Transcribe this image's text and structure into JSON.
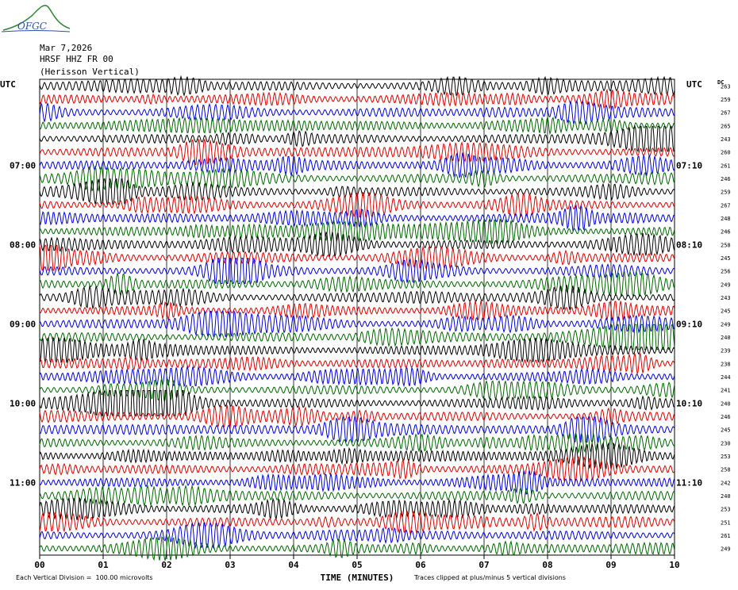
{
  "header": {
    "logo_text": "OFGC",
    "date": "Mar 7,2026",
    "station": "HRSF HHZ FR 00",
    "component": "(Herisson Vertical)"
  },
  "chart_data": {
    "type": "line",
    "title": "",
    "xlabel": "TIME (MINUTES)",
    "ylabel": "",
    "left_utc_label": "UTC",
    "right_utc_label": "UTC",
    "dc_label": "DC",
    "xlim": [
      0,
      10
    ],
    "x_ticks": [
      "00",
      "01",
      "02",
      "03",
      "04",
      "05",
      "06",
      "07",
      "08",
      "09",
      "10"
    ],
    "grid": true,
    "trace_colors": [
      "#000000",
      "#dd0000",
      "#0000dd",
      "#006600"
    ],
    "left_time_labels": [
      {
        "row": 6,
        "label": "07:00"
      },
      {
        "row": 12,
        "label": "08:00"
      },
      {
        "row": 18,
        "label": "09:00"
      },
      {
        "row": 24,
        "label": "10:00"
      },
      {
        "row": 30,
        "label": "11:00"
      }
    ],
    "right_time_labels": [
      {
        "row": 6,
        "label": "07:10"
      },
      {
        "row": 12,
        "label": "08:10"
      },
      {
        "row": 18,
        "label": "09:10"
      },
      {
        "row": 24,
        "label": "10:10"
      },
      {
        "row": 30,
        "label": "11:10"
      }
    ],
    "dc_offsets": [
      263,
      259,
      267,
      265,
      243,
      260,
      261,
      246,
      259,
      267,
      248,
      246,
      258,
      245,
      256,
      249,
      243,
      245,
      249,
      240,
      239,
      238,
      244,
      241,
      240,
      246,
      245,
      230,
      253,
      258,
      242,
      240,
      253,
      251,
      261,
      249
    ],
    "footer_scale": "Each Vertical Division =  100.00 microvolts",
    "footer_clip": "Traces clipped at plus/minus 5 vertical divisions"
  }
}
